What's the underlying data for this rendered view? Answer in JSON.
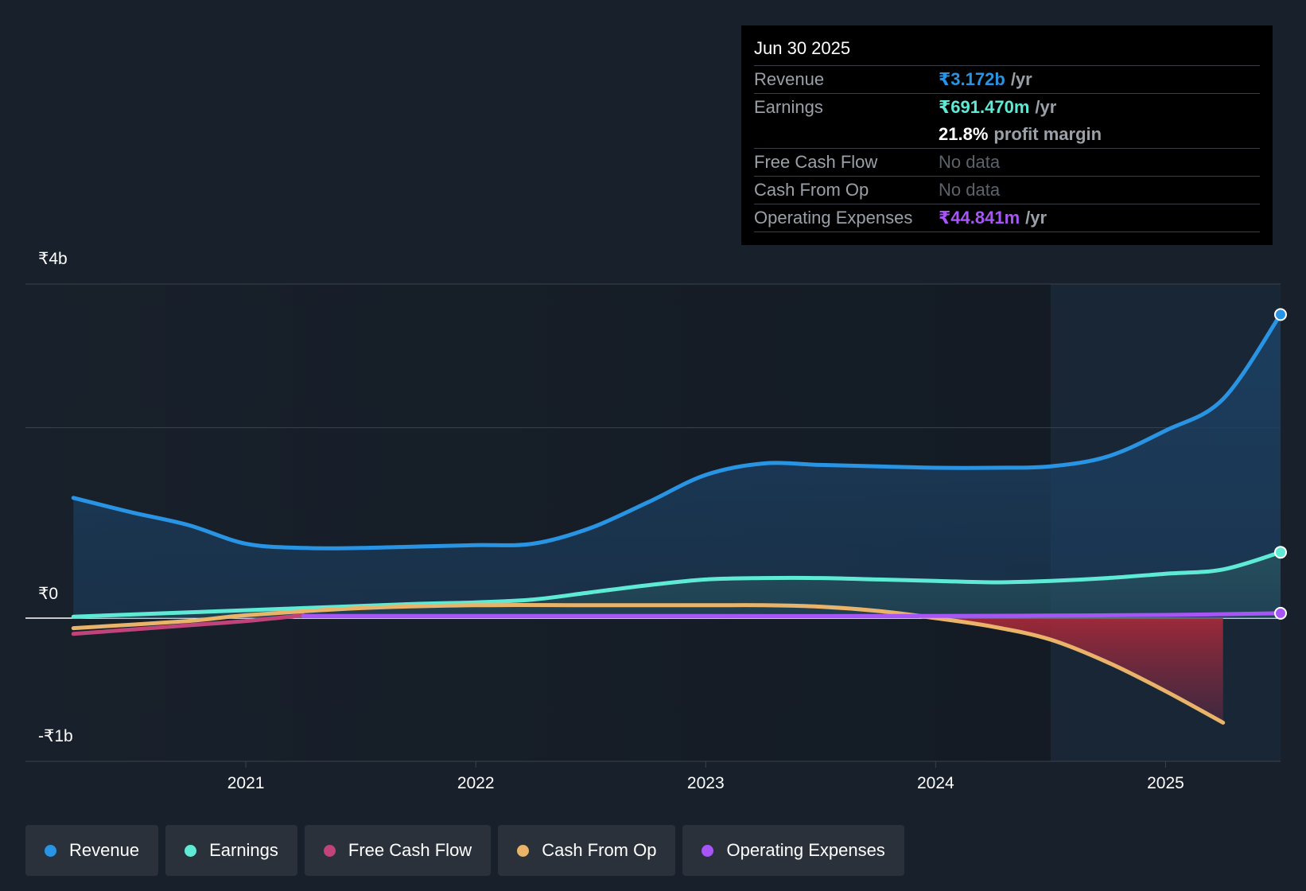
{
  "tooltip": {
    "date": "Jun 30 2025",
    "rows": [
      {
        "label": "Revenue",
        "value": "₹3.172b",
        "unit": "/yr",
        "color": "#2894e3"
      },
      {
        "label": "Earnings",
        "value": "₹691.470m",
        "unit": "/yr",
        "color": "#5eead4"
      },
      {
        "label": "",
        "value": "21.8%",
        "unit": "profit margin",
        "color": "#ffffff"
      },
      {
        "label": "Free Cash Flow",
        "value": "No data",
        "unit": "",
        "color": "#5d636b"
      },
      {
        "label": "Cash From Op",
        "value": "No data",
        "unit": "",
        "color": "#5d636b"
      },
      {
        "label": "Operating Expenses",
        "value": "₹44.841m",
        "unit": "/yr",
        "color": "#a855f7"
      }
    ]
  },
  "legend": [
    {
      "label": "Revenue",
      "color": "#2894e3"
    },
    {
      "label": "Earnings",
      "color": "#5eead4"
    },
    {
      "label": "Free Cash Flow",
      "color": "#c0437a"
    },
    {
      "label": "Cash From Op",
      "color": "#e9b36a"
    },
    {
      "label": "Operating Expenses",
      "color": "#a855f7"
    }
  ],
  "chart_data": {
    "type": "line",
    "y_tick_labels": [
      "₹4b",
      "₹0",
      "-₹1b"
    ],
    "x_tick_labels": [
      "2021",
      "2022",
      "2023",
      "2024",
      "2025"
    ],
    "x_ticks": [
      2021,
      2022,
      2023,
      2024,
      2025
    ],
    "xlim": [
      2020.0,
      2025.5
    ],
    "ylim": [
      -1.0,
      2.33
    ],
    "y_unit": "₹ billions",
    "gridlines_at": [
      -1.0,
      0,
      1.33,
      2.33
    ],
    "highlight_from": 2024.5,
    "series": [
      {
        "name": "Revenue",
        "color": "#2894e3",
        "x": [
          2020.25,
          2020.5,
          2020.75,
          2021.0,
          2021.25,
          2021.5,
          2021.75,
          2022.0,
          2022.25,
          2022.5,
          2022.75,
          2023.0,
          2023.25,
          2023.5,
          2023.75,
          2024.0,
          2024.25,
          2024.5,
          2024.75,
          2025.0,
          2025.25,
          2025.5
        ],
        "y": [
          0.84,
          0.74,
          0.65,
          0.52,
          0.49,
          0.49,
          0.5,
          0.51,
          0.52,
          0.63,
          0.81,
          1.0,
          1.08,
          1.07,
          1.06,
          1.05,
          1.05,
          1.06,
          1.13,
          1.31,
          1.53,
          2.12
        ]
      },
      {
        "name": "Earnings",
        "color": "#5eead4",
        "x": [
          2020.25,
          2020.75,
          2021.25,
          2021.75,
          2022.0,
          2022.25,
          2022.5,
          2022.75,
          2023.0,
          2023.25,
          2023.5,
          2023.75,
          2024.0,
          2024.25,
          2024.5,
          2024.75,
          2025.0,
          2025.25,
          2025.5
        ],
        "y": [
          0.01,
          0.04,
          0.07,
          0.1,
          0.11,
          0.13,
          0.18,
          0.23,
          0.27,
          0.28,
          0.28,
          0.27,
          0.26,
          0.25,
          0.26,
          0.28,
          0.31,
          0.34,
          0.46
        ]
      },
      {
        "name": "Free Cash Flow",
        "color": "#c0437a",
        "x": [
          2020.25,
          2020.5,
          2020.75,
          2021.0,
          2021.25
        ],
        "y": [
          -0.11,
          -0.08,
          -0.05,
          -0.02,
          0.02
        ]
      },
      {
        "name": "Cash From Op",
        "color": "#e9b36a",
        "x": [
          2020.25,
          2020.75,
          2021.0,
          2021.5,
          2022.0,
          2022.5,
          2023.0,
          2023.25,
          2023.5,
          2023.75,
          2024.0,
          2024.25,
          2024.5,
          2024.75,
          2025.0,
          2025.25
        ],
        "y": [
          -0.07,
          -0.02,
          0.02,
          0.07,
          0.09,
          0.09,
          0.09,
          0.09,
          0.08,
          0.05,
          0.0,
          -0.06,
          -0.15,
          -0.31,
          -0.51,
          -0.73
        ]
      },
      {
        "name": "Operating Expenses",
        "color": "#a855f7",
        "x": [
          2021.25,
          2022.0,
          2023.0,
          2024.0,
          2024.5,
          2025.0,
          2025.5
        ],
        "y": [
          0.015,
          0.015,
          0.015,
          0.015,
          0.018,
          0.022,
          0.034
        ]
      }
    ]
  }
}
